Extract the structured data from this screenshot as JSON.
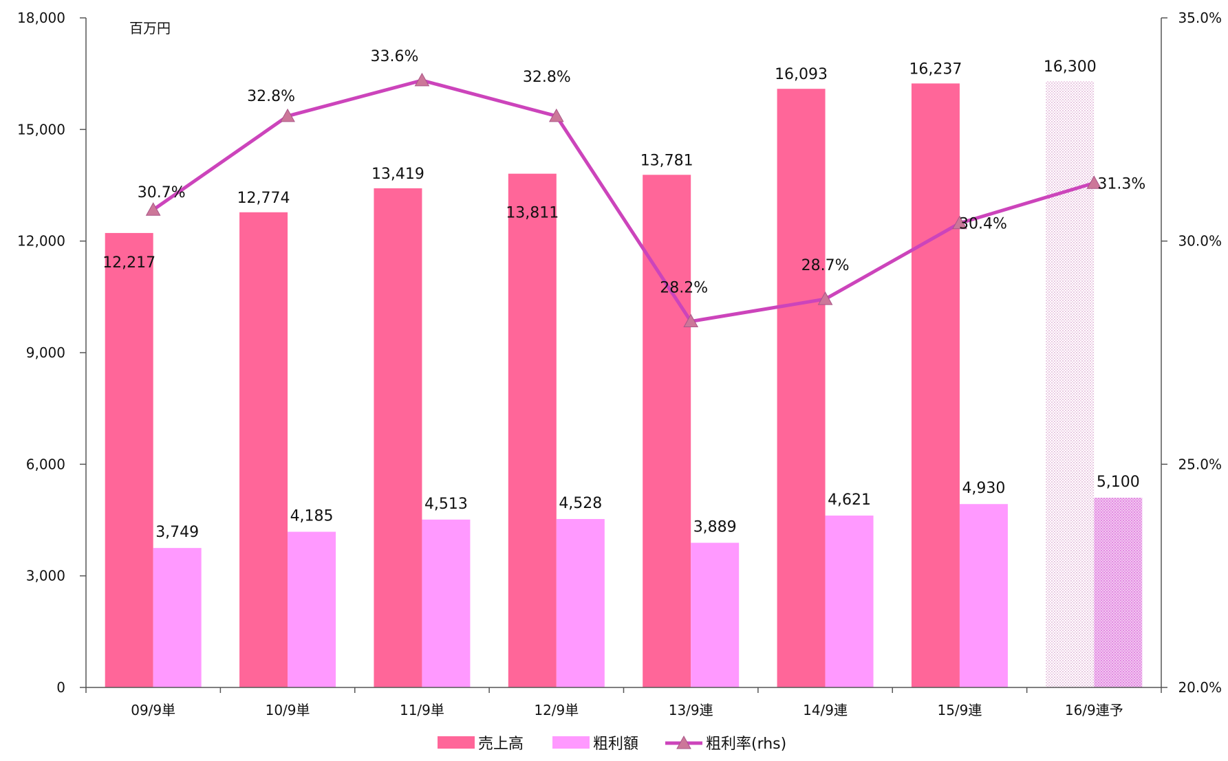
{
  "chart_data": {
    "type": "bar",
    "categories": [
      "09/9単",
      "10/9単",
      "11/9単",
      "12/9単",
      "13/9連",
      "14/9連",
      "15/9連",
      "16/9連予"
    ],
    "unit_label": "百万円",
    "series": [
      {
        "name": "売上高",
        "type": "bar",
        "axis": "left",
        "color": "#ff6699",
        "values": [
          12217,
          12774,
          13419,
          13811,
          13781,
          16093,
          16237,
          16300
        ],
        "labels": [
          "12,217",
          "12,774",
          "13,419",
          "13,811",
          "13,781",
          "16,093",
          "16,237",
          "16,300"
        ]
      },
      {
        "name": "粗利額",
        "type": "bar",
        "axis": "left",
        "color": "#ff99ff",
        "values": [
          3749,
          4185,
          4513,
          4528,
          3889,
          4621,
          4930,
          5100
        ],
        "labels": [
          "3,749",
          "4,185",
          "4,513",
          "4,528",
          "3,889",
          "4,621",
          "4,930",
          "5,100"
        ]
      },
      {
        "name": "粗利率(rhs)",
        "type": "line",
        "axis": "right",
        "color": "#cc44bb",
        "marker": "triangle",
        "marker_color": "#cc7799",
        "values": [
          30.7,
          32.8,
          33.6,
          32.8,
          28.2,
          28.7,
          30.4,
          31.3
        ],
        "labels": [
          "30.7%",
          "32.8%",
          "33.6%",
          "32.8%",
          "28.2%",
          "28.7%",
          "30.4%",
          "31.3%"
        ]
      }
    ],
    "forecast_category_index": 7,
    "y_left": {
      "min": 0,
      "max": 18000,
      "ticks": [
        0,
        3000,
        6000,
        9000,
        12000,
        15000,
        18000
      ],
      "tick_labels": [
        "0",
        "3,000",
        "6,000",
        "9,000",
        "12,000",
        "15,000",
        "18,000"
      ]
    },
    "y_right": {
      "min": 20,
      "max": 35,
      "ticks": [
        20,
        25,
        30,
        35
      ],
      "tick_labels": [
        "20.0%",
        "25.0%",
        "30.0%",
        "35.0%"
      ]
    },
    "grid": false,
    "legend_position": "bottom-center"
  }
}
